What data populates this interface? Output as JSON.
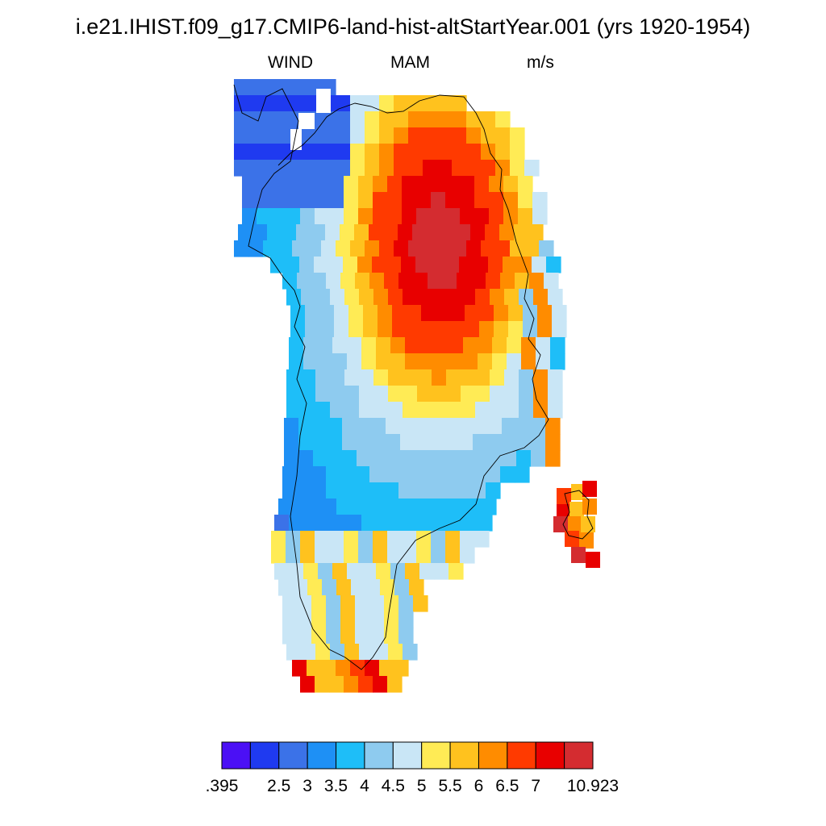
{
  "header": {
    "title": "i.e21.IHIST.f09_g17.CMIP6-land-hist-altStartYear.001 (yrs 1920-1954)",
    "variable": "WIND",
    "season": "MAM",
    "units": "m/s"
  },
  "colorbar": {
    "colors": [
      "#4b10f5",
      "#1f3af0",
      "#3b72e8",
      "#1e90f5",
      "#1ebef8",
      "#8ecbef",
      "#c9e6f6",
      "#ffeb55",
      "#ffc21e",
      "#ff8c00",
      "#ff3a00",
      "#e80000",
      "#d42c30"
    ],
    "tick_labels": [
      ".395",
      "2.5",
      "3",
      "3.5",
      "4",
      "4.5",
      "5",
      "5.5",
      "6",
      "6.5",
      "7",
      "10.923"
    ]
  },
  "map_data": {
    "region": "Greenland",
    "field": "WIND",
    "value_range": [
      0.395,
      10.923
    ]
  }
}
